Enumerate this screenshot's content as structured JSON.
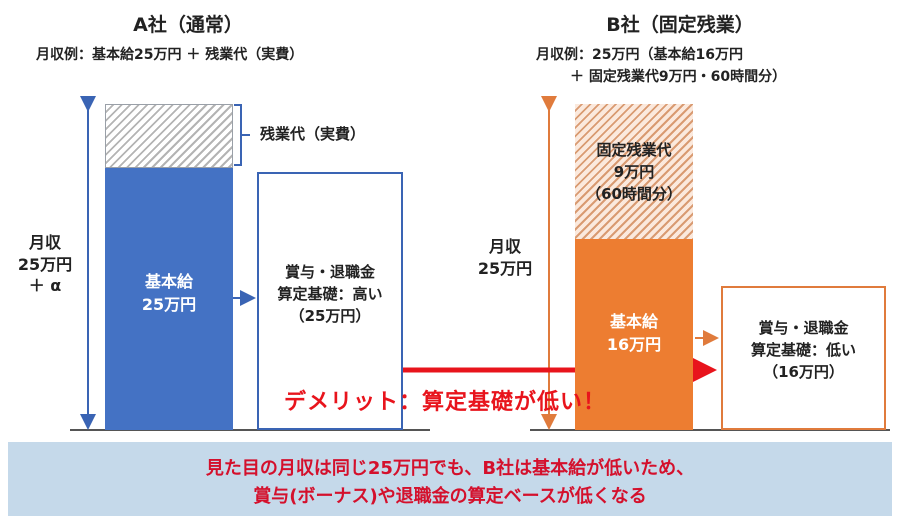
{
  "company_a": {
    "title": "A社（通常）",
    "subtitle": "月収例：基本給25万円 ＋ 残業代（実費）",
    "monthly_income": [
      "月収",
      "25万円",
      "＋ α"
    ],
    "overtime_label": "残業代（実費）",
    "base_pay": [
      "基本給",
      "25万円"
    ],
    "bonus_box": [
      "賞与・退職金",
      "算定基礎：高い",
      "（25万円）"
    ]
  },
  "company_b": {
    "title": "B社（固定残業）",
    "subtitle_line1": "月収例：25万円（基本給16万円",
    "subtitle_line2": "＋ 固定残業代9万円・60時間分）",
    "monthly_income": [
      "月収",
      "25万円"
    ],
    "fixed_overtime": [
      "固定残業代",
      "9万円",
      "（60時間分）"
    ],
    "base_pay": [
      "基本給",
      "16万円"
    ],
    "bonus_box": [
      "賞与・退職金",
      "算定基礎：低い",
      "（16万円）"
    ]
  },
  "demerit": "デメリット：算定基礎が低い！",
  "banner": {
    "line1": "見た目の月収は同じ25万円でも、B社は基本給が低いため、",
    "line2": "賞与(ボーナス)や退職金の算定ベースが低くなる"
  },
  "colors": {
    "blue": "#4472c4",
    "orange": "#ed7d31",
    "red": "#e8141c",
    "banner_bg": "#c5d9ea",
    "banner_text": "#d4102c"
  }
}
